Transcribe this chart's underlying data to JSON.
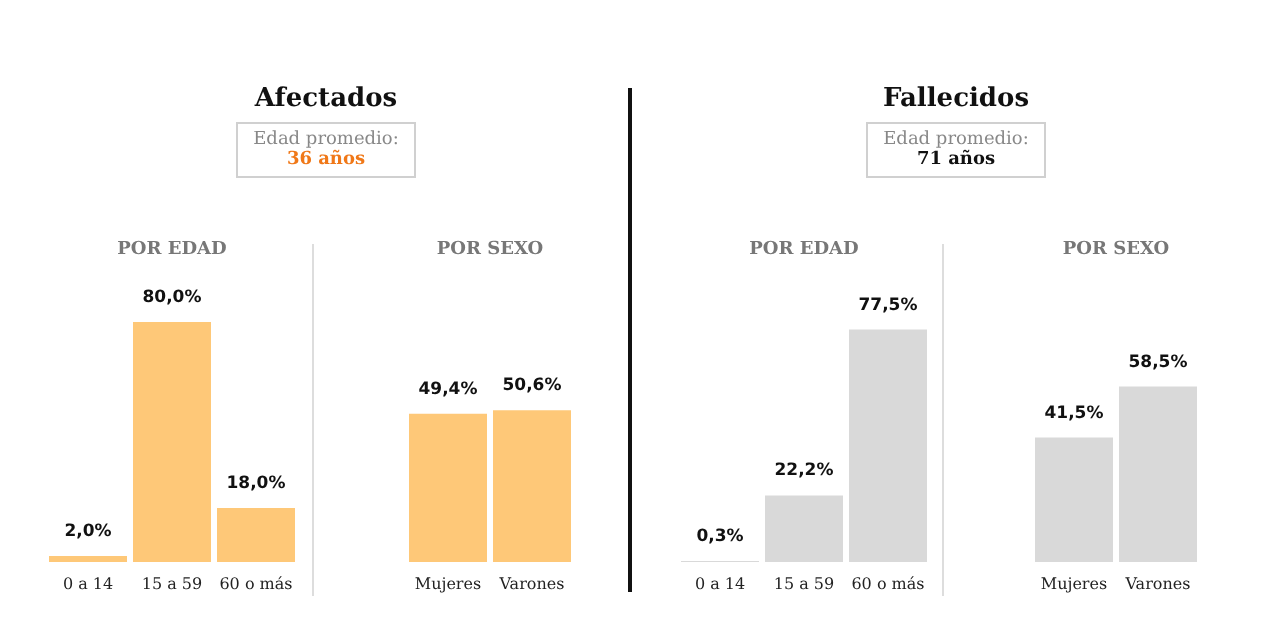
{
  "chart_data": [
    {
      "type": "other",
      "title": "Afectados",
      "annotations": [
        "Edad promedio:",
        "36 años"
      ],
      "color": "#f07818"
    },
    {
      "type": "bar",
      "title": "POR EDAD",
      "categories": [
        "0 a 14",
        "15 a 59",
        "60 o más"
      ],
      "values": [
        2.0,
        80.0,
        18.0
      ],
      "value_labels": [
        "2,0%",
        "80,0%",
        "18,0%"
      ],
      "color": "#fec878"
    },
    {
      "type": "bar",
      "title": "POR SEXO",
      "categories": [
        "Mujeres",
        "Varones"
      ],
      "values": [
        49.4,
        50.6
      ],
      "value_labels": [
        "49,4%",
        "50,6%"
      ],
      "color": "#fec878"
    },
    {
      "type": "other",
      "title": "Fallecidos",
      "annotations": [
        "Edad promedio:",
        "71 años"
      ],
      "color": "#111111"
    },
    {
      "type": "bar",
      "title": "POR EDAD",
      "categories": [
        "0 a 14",
        "15 a 59",
        "60 o más"
      ],
      "values": [
        0.3,
        22.2,
        77.5
      ],
      "value_labels": [
        "0,3%",
        "22,2%",
        "77,5%"
      ],
      "color": "#d9d9d9"
    },
    {
      "type": "bar",
      "title": "POR SEXO",
      "categories": [
        "Mujeres",
        "Varones"
      ],
      "values": [
        41.5,
        58.5
      ],
      "value_labels": [
        "41,5%",
        "58,5%"
      ],
      "color": "#d9d9d9"
    }
  ]
}
